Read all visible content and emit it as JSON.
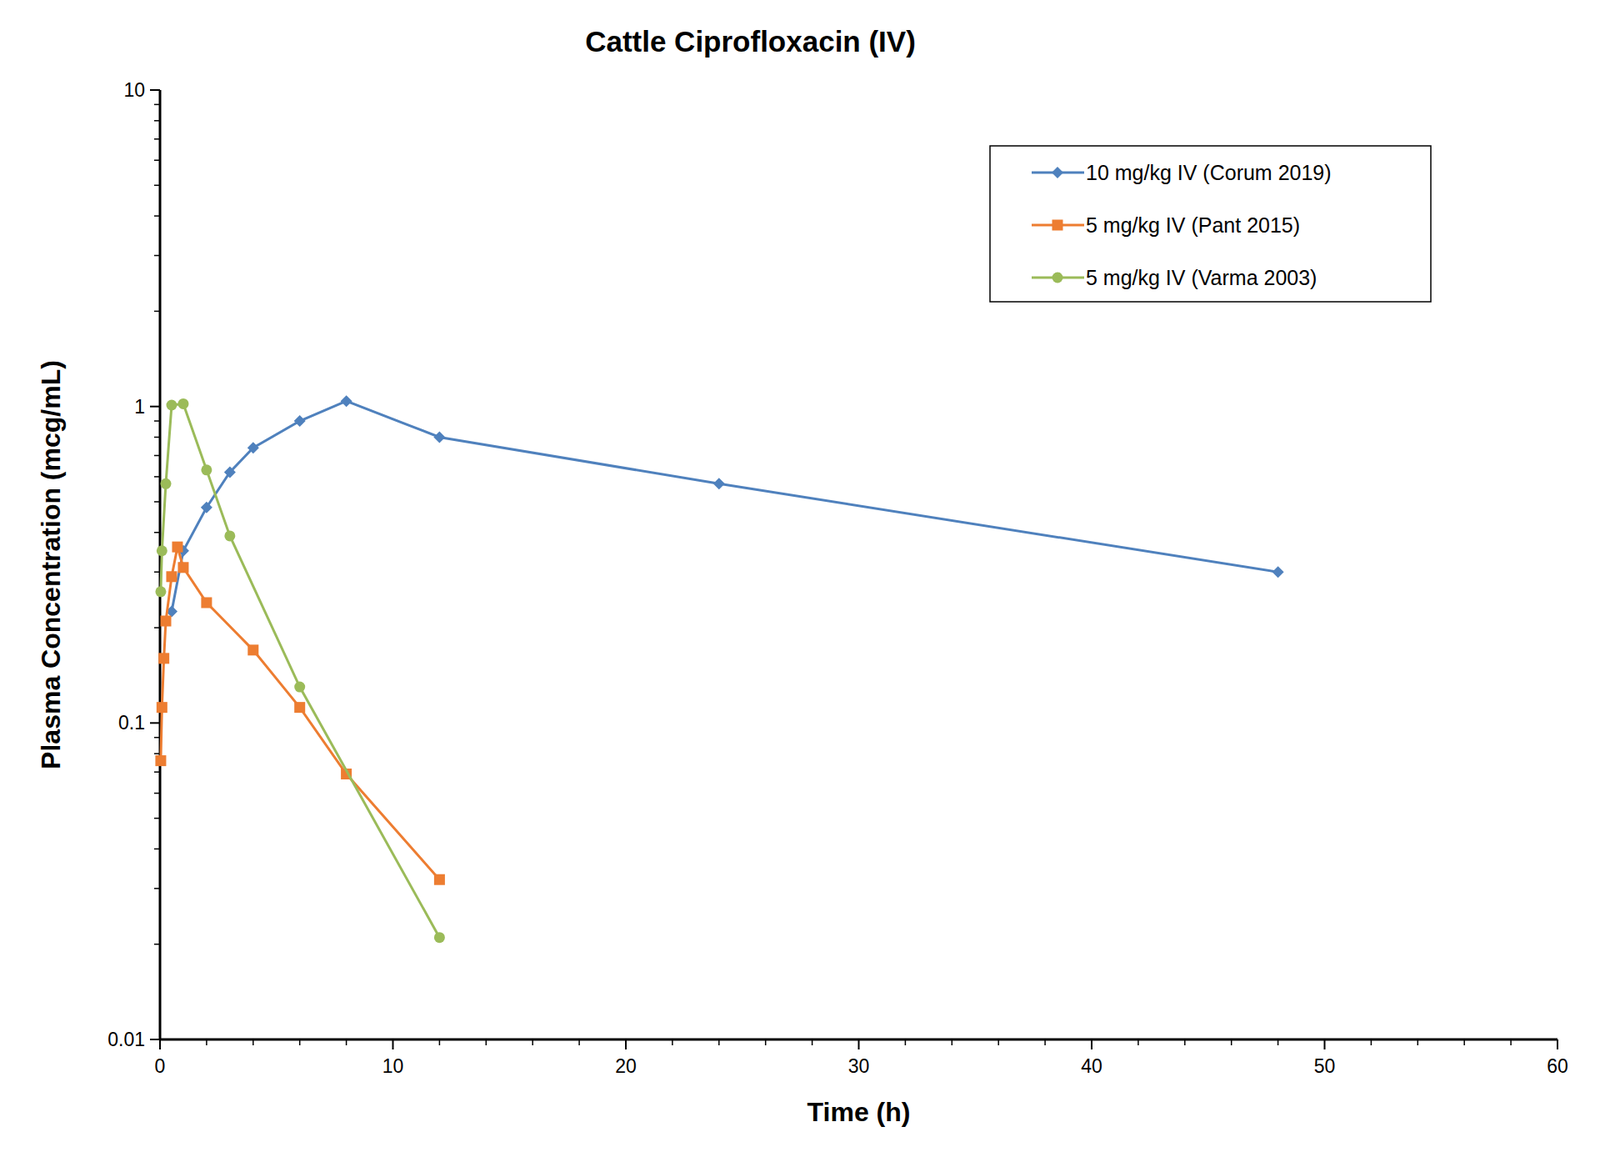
{
  "chart_data": {
    "type": "line",
    "title": "Cattle Ciprofloxacin (IV)",
    "x_label": "Time (h)",
    "y_label": "Plasma Concentration (mcg/mL)",
    "log": "y",
    "legend": "upper right",
    "grid": false,
    "xlim": [
      0,
      60
    ],
    "xticks": [
      0,
      10,
      20,
      30,
      40,
      50,
      60
    ],
    "ylim": [
      0.01,
      10
    ],
    "yticks": [
      0.01,
      0.1,
      1,
      10
    ],
    "series": [
      {
        "name": "10 mg/kg IV (Corum 2019)",
        "color": "#4f81bd",
        "marker": "diamond",
        "line_style": "solid",
        "x": [
          0.5,
          1,
          2,
          3,
          4,
          6,
          8,
          12,
          24,
          48
        ],
        "values": [
          0.225,
          0.35,
          0.48,
          0.62,
          0.74,
          0.9,
          1.04,
          0.8,
          0.57,
          0.3
        ]
      },
      {
        "name": "5 mg/kg IV (Pant 2015)",
        "color": "#ed7d31",
        "marker": "square",
        "line_style": "solid",
        "x": [
          0.033,
          0.083,
          0.167,
          0.25,
          0.5,
          0.75,
          1,
          2,
          4,
          6,
          8,
          12
        ],
        "values": [
          0.076,
          0.112,
          0.16,
          0.21,
          0.29,
          0.36,
          0.31,
          0.24,
          0.17,
          0.112,
          0.069,
          0.032
        ]
      },
      {
        "name": "5 mg/kg IV (Varma 2003)",
        "color": "#9bbb59",
        "marker": "circle",
        "line_style": "solid",
        "x": [
          0.033,
          0.083,
          0.25,
          0.5,
          1,
          2,
          3,
          6,
          12
        ],
        "values": [
          0.26,
          0.35,
          0.57,
          1.01,
          1.02,
          0.63,
          0.39,
          0.13,
          0.021
        ]
      }
    ]
  }
}
